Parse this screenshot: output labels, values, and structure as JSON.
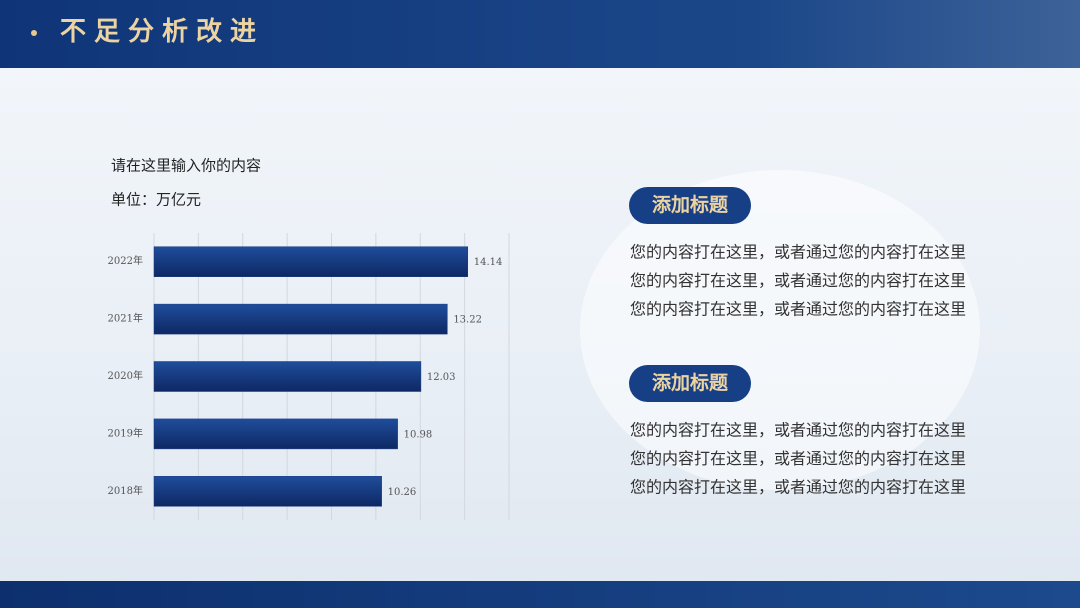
{
  "header": {
    "title": "不足分析改进"
  },
  "chart_data": {
    "type": "bar",
    "orientation": "horizontal",
    "title": "请在这里输入你的内容",
    "subtitle": "单位：万亿元",
    "categories": [
      "2022年",
      "2021年",
      "2020年",
      "2019年",
      "2018年"
    ],
    "values": [
      14.14,
      13.22,
      12.03,
      10.98,
      10.26
    ],
    "color": "#173a7e",
    "xlim": [
      0,
      16
    ],
    "xticks": [
      0,
      2,
      4,
      6,
      8,
      10,
      12,
      14,
      16
    ],
    "grid": true
  },
  "sections": [
    {
      "title": "添加标题",
      "lines": [
        "您的内容打在这里，或者通过您的内容打在这里",
        "您的内容打在这里，或者通过您的内容打在这里",
        "您的内容打在这里，或者通过您的内容打在这里"
      ]
    },
    {
      "title": "添加标题",
      "lines": [
        "您的内容打在这里，或者通过您的内容打在这里",
        "您的内容打在这里，或者通过您的内容打在这里",
        "您的内容打在这里，或者通过您的内容打在这里"
      ]
    }
  ]
}
